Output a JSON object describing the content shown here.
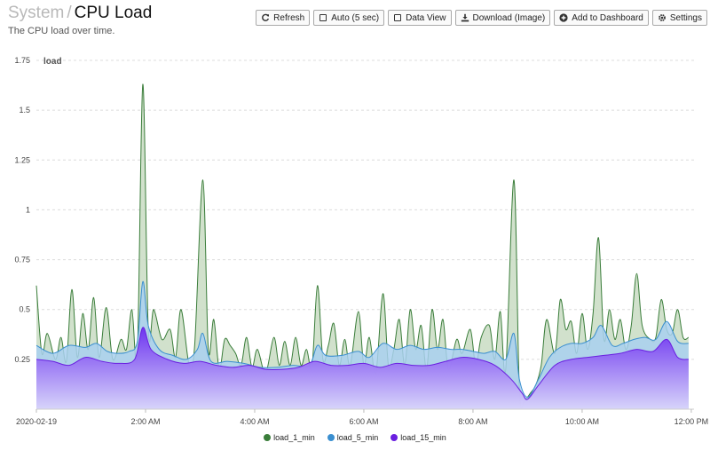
{
  "header": {
    "breadcrumb": "System",
    "separator": "/",
    "title": "CPU Load",
    "subtitle": "The CPU load over time."
  },
  "toolbar": {
    "refresh_label": "Refresh",
    "auto_label": "Auto (5 sec)",
    "dataview_label": "Data View",
    "download_label": "Download (Image)",
    "dashboard_label": "Add to Dashboard",
    "settings_label": "Settings"
  },
  "chart_data": {
    "type": "area",
    "ylabel": "load",
    "xlabel": "",
    "ylim": [
      0,
      1.75
    ],
    "yticks": [
      "1.75",
      "1.5",
      "1.25",
      "1",
      "0.75",
      "0.5",
      "0.25"
    ],
    "yticks_values": [
      1.75,
      1.5,
      1.25,
      1,
      0.75,
      0.5,
      0.25
    ],
    "xticks": [
      "2020-02-19",
      "2:00 AM",
      "4:00 AM",
      "6:00 AM",
      "8:00 AM",
      "10:00 AM",
      "12:00 PM"
    ],
    "xticks_hours": [
      0,
      2,
      4,
      6,
      8,
      10,
      12
    ],
    "x_range_hours": [
      0,
      12.05
    ],
    "grid": true,
    "legend_position": "bottom",
    "series": [
      {
        "name": "load_1_min",
        "color": "#3a7d3a",
        "fill": "#c9dcc3",
        "points": [
          [
            0,
            0.62
          ],
          [
            0.1,
            0.28
          ],
          [
            0.2,
            0.38
          ],
          [
            0.35,
            0.25
          ],
          [
            0.45,
            0.36
          ],
          [
            0.55,
            0.24
          ],
          [
            0.65,
            0.6
          ],
          [
            0.75,
            0.26
          ],
          [
            0.85,
            0.48
          ],
          [
            0.95,
            0.3
          ],
          [
            1.05,
            0.56
          ],
          [
            1.15,
            0.26
          ],
          [
            1.28,
            0.51
          ],
          [
            1.4,
            0.25
          ],
          [
            1.55,
            0.35
          ],
          [
            1.65,
            0.3
          ],
          [
            1.75,
            0.5
          ],
          [
            1.85,
            0.28
          ],
          [
            1.95,
            1.63
          ],
          [
            2.05,
            0.4
          ],
          [
            2.15,
            0.5
          ],
          [
            2.3,
            0.35
          ],
          [
            2.45,
            0.4
          ],
          [
            2.55,
            0.26
          ],
          [
            2.65,
            0.5
          ],
          [
            2.8,
            0.22
          ],
          [
            2.9,
            0.32
          ],
          [
            3.05,
            1.15
          ],
          [
            3.15,
            0.3
          ],
          [
            3.25,
            0.45
          ],
          [
            3.35,
            0.2
          ],
          [
            3.45,
            0.35
          ],
          [
            3.55,
            0.32
          ],
          [
            3.65,
            0.28
          ],
          [
            3.75,
            0.22
          ],
          [
            3.85,
            0.36
          ],
          [
            3.95,
            0.21
          ],
          [
            4.05,
            0.3
          ],
          [
            4.2,
            0.18
          ],
          [
            4.35,
            0.36
          ],
          [
            4.45,
            0.22
          ],
          [
            4.55,
            0.34
          ],
          [
            4.65,
            0.22
          ],
          [
            4.75,
            0.36
          ],
          [
            4.85,
            0.22
          ],
          [
            4.95,
            0.3
          ],
          [
            5.05,
            0.21
          ],
          [
            5.15,
            0.62
          ],
          [
            5.25,
            0.25
          ],
          [
            5.35,
            0.32
          ],
          [
            5.45,
            0.43
          ],
          [
            5.55,
            0.22
          ],
          [
            5.65,
            0.35
          ],
          [
            5.75,
            0.22
          ],
          [
            5.9,
            0.49
          ],
          [
            6.0,
            0.22
          ],
          [
            6.1,
            0.36
          ],
          [
            6.22,
            0.18
          ],
          [
            6.35,
            0.58
          ],
          [
            6.45,
            0.22
          ],
          [
            6.55,
            0.3
          ],
          [
            6.65,
            0.45
          ],
          [
            6.75,
            0.22
          ],
          [
            6.85,
            0.5
          ],
          [
            6.95,
            0.3
          ],
          [
            7.05,
            0.42
          ],
          [
            7.15,
            0.2
          ],
          [
            7.25,
            0.5
          ],
          [
            7.35,
            0.3
          ],
          [
            7.45,
            0.45
          ],
          [
            7.55,
            0.2
          ],
          [
            7.7,
            0.35
          ],
          [
            7.8,
            0.28
          ],
          [
            7.95,
            0.4
          ],
          [
            8.05,
            0.22
          ],
          [
            8.15,
            0.36
          ],
          [
            8.3,
            0.42
          ],
          [
            8.4,
            0.25
          ],
          [
            8.5,
            0.49
          ],
          [
            8.6,
            0.2
          ],
          [
            8.75,
            1.15
          ],
          [
            8.85,
            0.1
          ],
          [
            8.95,
            0.05
          ],
          [
            9.05,
            0.08
          ],
          [
            9.15,
            0.12
          ],
          [
            9.25,
            0.22
          ],
          [
            9.35,
            0.45
          ],
          [
            9.5,
            0.28
          ],
          [
            9.6,
            0.55
          ],
          [
            9.7,
            0.4
          ],
          [
            9.8,
            0.44
          ],
          [
            9.9,
            0.28
          ],
          [
            10.0,
            0.48
          ],
          [
            10.1,
            0.3
          ],
          [
            10.2,
            0.48
          ],
          [
            10.3,
            0.86
          ],
          [
            10.4,
            0.35
          ],
          [
            10.5,
            0.5
          ],
          [
            10.6,
            0.35
          ],
          [
            10.7,
            0.45
          ],
          [
            10.8,
            0.3
          ],
          [
            10.9,
            0.42
          ],
          [
            11.0,
            0.68
          ],
          [
            11.1,
            0.42
          ],
          [
            11.25,
            0.35
          ],
          [
            11.35,
            0.36
          ],
          [
            11.45,
            0.55
          ],
          [
            11.55,
            0.4
          ],
          [
            11.65,
            0.38
          ],
          [
            11.75,
            0.5
          ],
          [
            11.85,
            0.36
          ],
          [
            11.95,
            0.36
          ]
        ]
      },
      {
        "name": "load_5_min",
        "color": "#3a8fd0",
        "fill": "#a9d0ef",
        "points": [
          [
            0,
            0.32
          ],
          [
            0.3,
            0.28
          ],
          [
            0.6,
            0.32
          ],
          [
            0.9,
            0.31
          ],
          [
            1.1,
            0.33
          ],
          [
            1.3,
            0.29
          ],
          [
            1.5,
            0.28
          ],
          [
            1.7,
            0.29
          ],
          [
            1.85,
            0.34
          ],
          [
            1.95,
            0.64
          ],
          [
            2.05,
            0.42
          ],
          [
            2.25,
            0.3
          ],
          [
            2.5,
            0.27
          ],
          [
            2.75,
            0.25
          ],
          [
            2.95,
            0.3
          ],
          [
            3.05,
            0.38
          ],
          [
            3.2,
            0.24
          ],
          [
            3.5,
            0.24
          ],
          [
            3.8,
            0.23
          ],
          [
            4.1,
            0.21
          ],
          [
            4.4,
            0.21
          ],
          [
            4.7,
            0.22
          ],
          [
            5.0,
            0.22
          ],
          [
            5.15,
            0.32
          ],
          [
            5.3,
            0.27
          ],
          [
            5.6,
            0.27
          ],
          [
            5.9,
            0.29
          ],
          [
            6.1,
            0.26
          ],
          [
            6.35,
            0.33
          ],
          [
            6.6,
            0.3
          ],
          [
            6.85,
            0.32
          ],
          [
            7.1,
            0.3
          ],
          [
            7.35,
            0.31
          ],
          [
            7.6,
            0.3
          ],
          [
            7.8,
            0.3
          ],
          [
            8.0,
            0.29
          ],
          [
            8.2,
            0.28
          ],
          [
            8.4,
            0.29
          ],
          [
            8.6,
            0.25
          ],
          [
            8.75,
            0.38
          ],
          [
            8.85,
            0.15
          ],
          [
            9.0,
            0.06
          ],
          [
            9.2,
            0.15
          ],
          [
            9.4,
            0.26
          ],
          [
            9.6,
            0.31
          ],
          [
            9.8,
            0.33
          ],
          [
            10.0,
            0.33
          ],
          [
            10.2,
            0.36
          ],
          [
            10.35,
            0.42
          ],
          [
            10.55,
            0.32
          ],
          [
            10.75,
            0.33
          ],
          [
            10.95,
            0.35
          ],
          [
            11.15,
            0.36
          ],
          [
            11.35,
            0.35
          ],
          [
            11.55,
            0.44
          ],
          [
            11.75,
            0.34
          ],
          [
            11.95,
            0.33
          ]
        ]
      },
      {
        "name": "load_15_min",
        "color": "#6a1fe0",
        "fill": "#7b4df0",
        "points": [
          [
            0,
            0.25
          ],
          [
            0.3,
            0.24
          ],
          [
            0.6,
            0.22
          ],
          [
            0.9,
            0.26
          ],
          [
            1.2,
            0.24
          ],
          [
            1.5,
            0.23
          ],
          [
            1.8,
            0.25
          ],
          [
            1.95,
            0.41
          ],
          [
            2.1,
            0.3
          ],
          [
            2.4,
            0.25
          ],
          [
            2.7,
            0.23
          ],
          [
            3.0,
            0.24
          ],
          [
            3.3,
            0.22
          ],
          [
            3.6,
            0.21
          ],
          [
            3.9,
            0.22
          ],
          [
            4.2,
            0.2
          ],
          [
            4.5,
            0.2
          ],
          [
            4.8,
            0.21
          ],
          [
            5.1,
            0.24
          ],
          [
            5.4,
            0.22
          ],
          [
            5.7,
            0.22
          ],
          [
            6.0,
            0.23
          ],
          [
            6.3,
            0.21
          ],
          [
            6.6,
            0.23
          ],
          [
            6.9,
            0.22
          ],
          [
            7.2,
            0.22
          ],
          [
            7.5,
            0.24
          ],
          [
            7.8,
            0.26
          ],
          [
            8.1,
            0.25
          ],
          [
            8.4,
            0.22
          ],
          [
            8.7,
            0.15
          ],
          [
            8.9,
            0.08
          ],
          [
            9.0,
            0.05
          ],
          [
            9.2,
            0.12
          ],
          [
            9.5,
            0.22
          ],
          [
            9.8,
            0.25
          ],
          [
            10.1,
            0.26
          ],
          [
            10.4,
            0.27
          ],
          [
            10.7,
            0.28
          ],
          [
            11.0,
            0.3
          ],
          [
            11.3,
            0.29
          ],
          [
            11.55,
            0.35
          ],
          [
            11.75,
            0.26
          ],
          [
            11.95,
            0.25
          ]
        ]
      }
    ]
  }
}
